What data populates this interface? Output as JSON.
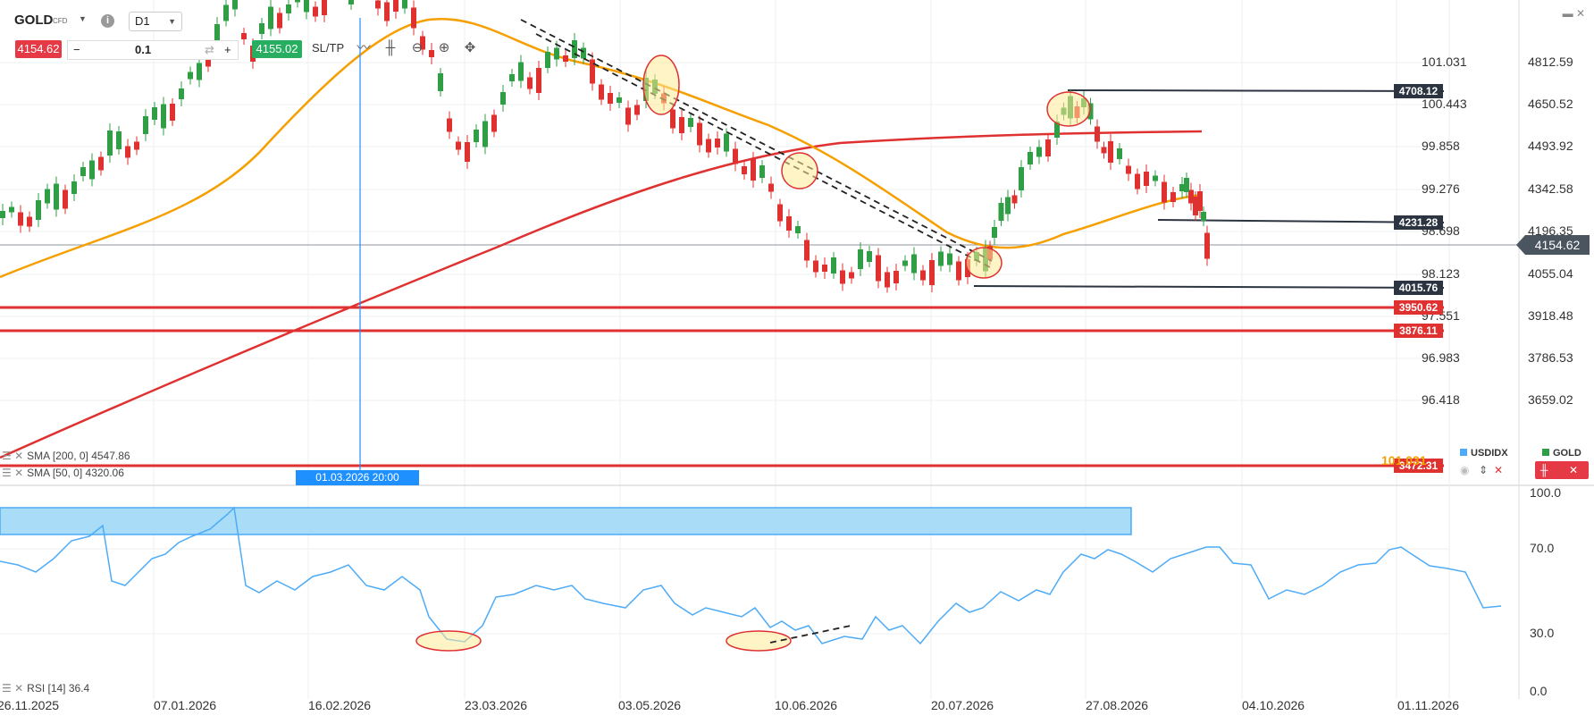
{
  "instrument": {
    "symbol": "GOLD",
    "type": "CFD",
    "timeframe": "D1"
  },
  "trade": {
    "sell_price": "4154.62",
    "quantity": "0.1",
    "buy_price": "4155.02",
    "sltp_label": "SL/TP",
    "minus": "−",
    "plus": "+"
  },
  "price_axis": [
    "4812.59",
    "4650.52",
    "4493.92",
    "4342.58",
    "4196.35",
    "4055.04",
    "3918.48",
    "3786.53",
    "3659.02"
  ],
  "usdidx_axis": [
    "101.031",
    "100.443",
    "99.858",
    "99.276",
    "98.698",
    "98.123",
    "97.551",
    "96.983",
    "96.418"
  ],
  "current_price": "4154.62",
  "level_badges": [
    {
      "label": "4708.12",
      "color": "#2b3440"
    },
    {
      "label": "4231.28",
      "color": "#2b3440"
    },
    {
      "label": "4015.76",
      "color": "#2b3440"
    },
    {
      "label": "3950.62",
      "color": "#e03131"
    },
    {
      "label": "3876.11",
      "color": "#e03131"
    },
    {
      "label": "3472.31",
      "color": "#e03131"
    }
  ],
  "overlap_label": "101.031",
  "indicators": {
    "sma200": "SMA [200, 0] 4547.86",
    "sma50": "SMA [50, 0] 4320.06",
    "rsi": "RSI [14] 36.4"
  },
  "crosshair_time": "01.03.2026 20:00",
  "date_axis": [
    "26.11.2025",
    "07.01.2026",
    "16.02.2026",
    "23.03.2026",
    "03.05.2026",
    "10.06.2026",
    "20.07.2026",
    "27.08.2026",
    "04.10.2026",
    "01.11.2026"
  ],
  "rsi_axis": [
    "100.0",
    "70.0",
    "30.0",
    "0.0"
  ],
  "legend_right": {
    "usdidx": "USDIDX",
    "gold": "GOLD",
    "usdidx_color": "#4dabf7",
    "gold_color": "#2f9e44"
  },
  "colors": {
    "bull": "#2f9e44",
    "bear": "#e03131",
    "sma50": "#f59f00",
    "sma200": "#e03131",
    "rsi": "#4dabf7"
  }
}
